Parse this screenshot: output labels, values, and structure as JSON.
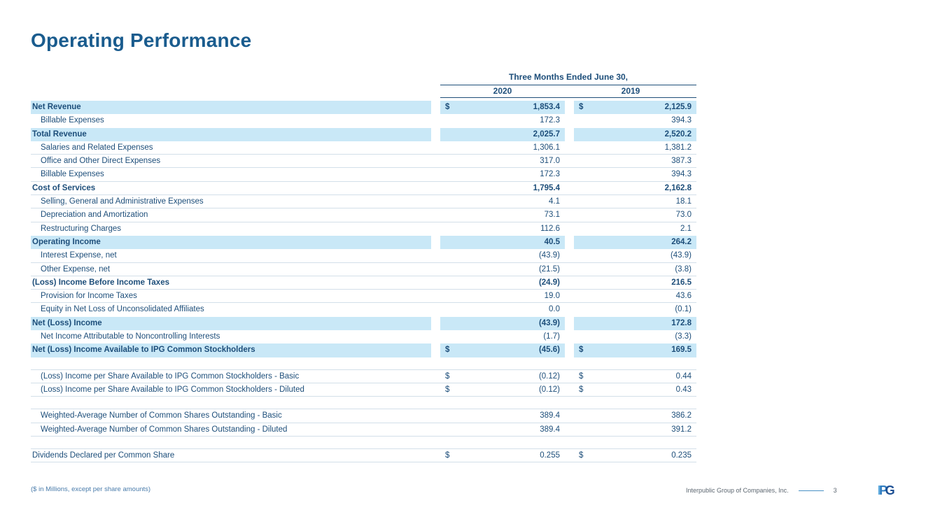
{
  "slide": {
    "title": "Operating Performance",
    "footnote": "($ in Millions, except per share amounts)",
    "footer": {
      "company": "Interpublic Group of Companies, Inc.",
      "page": "3",
      "logo_letters": [
        "I",
        "P",
        "G"
      ]
    },
    "colors": {
      "title_blue": "#1a5c8e",
      "table_text": "#1d4e7a",
      "row_highlight": "#c9e8f7",
      "header_rule": "#1f4e79",
      "row_rule": "#d3dfe9",
      "footer_accent": "#4a90c4"
    }
  },
  "table": {
    "period_header": "Three Months Ended June 30,",
    "year_columns": [
      "2020",
      "2019"
    ],
    "sections": [
      {
        "name": "income-statement",
        "rows": [
          {
            "label": "Net Revenue",
            "dollar": true,
            "v2020": "1,853.4",
            "v2019": "2,125.9",
            "highlight": true,
            "bold": true
          },
          {
            "label": "Billable Expenses",
            "indent": true,
            "v2020": "172.3",
            "v2019": "394.3"
          },
          {
            "label": "Total Revenue",
            "bold": true,
            "highlight": true,
            "v2020": "2,025.7",
            "v2019": "2,520.2"
          },
          {
            "label": "Salaries and Related Expenses",
            "indent": true,
            "v2020": "1,306.1",
            "v2019": "1,381.2",
            "line": true
          },
          {
            "label": "Office and Other Direct Expenses",
            "indent": true,
            "v2020": "317.0",
            "v2019": "387.3",
            "line": true
          },
          {
            "label": "Billable Expenses",
            "indent": true,
            "v2020": "172.3",
            "v2019": "394.3",
            "line": true
          },
          {
            "label": "Cost of Services",
            "bold": true,
            "v2020": "1,795.4",
            "v2019": "2,162.8",
            "line": true
          },
          {
            "label": "Selling, General and Administrative Expenses",
            "indent": true,
            "v2020": "4.1",
            "v2019": "18.1",
            "line": true
          },
          {
            "label": "Depreciation and Amortization",
            "indent": true,
            "v2020": "73.1",
            "v2019": "73.0",
            "line": true
          },
          {
            "label": "Restructuring Charges",
            "indent": true,
            "v2020": "112.6",
            "v2019": "2.1"
          },
          {
            "label": "Operating Income",
            "bold": true,
            "highlight": true,
            "v2020": "40.5",
            "v2019": "264.2"
          },
          {
            "label": "Interest Expense, net",
            "indent": true,
            "v2020": "(43.9)",
            "v2019": "(43.9)",
            "line": true
          },
          {
            "label": "Other Expense, net",
            "indent": true,
            "v2020": "(21.5)",
            "v2019": "(3.8)",
            "line": true
          },
          {
            "label": "(Loss) Income Before Income Taxes",
            "bold": true,
            "v2020": "(24.9)",
            "v2019": "216.5",
            "line": true
          },
          {
            "label": "Provision for Income Taxes",
            "indent": true,
            "v2020": "19.0",
            "v2019": "43.6",
            "line": true
          },
          {
            "label": "Equity in Net Loss of Unconsolidated Affiliates",
            "indent": true,
            "v2020": "0.0",
            "v2019": "(0.1)"
          },
          {
            "label": "Net (Loss) Income",
            "bold": true,
            "highlight": true,
            "v2020": "(43.9)",
            "v2019": "172.8"
          },
          {
            "label": "Net Income Attributable to Noncontrolling Interests",
            "indent": true,
            "v2020": "(1.7)",
            "v2019": "(3.3)"
          },
          {
            "label": "Net (Loss) Income Available to IPG Common Stockholders",
            "bold": true,
            "highlight": true,
            "dollar": true,
            "v2020": "(45.6)",
            "v2019": "169.5"
          }
        ]
      },
      {
        "name": "per-share",
        "rows": [
          {
            "label": "(Loss) Income per Share Available to IPG Common Stockholders - Basic",
            "indent": true,
            "dollar": true,
            "v2020": "(0.12)",
            "v2019": "0.44",
            "line": true
          },
          {
            "label": "(Loss) Income per Share Available to IPG Common Stockholders - Diluted",
            "indent": true,
            "dollar": true,
            "v2020": "(0.12)",
            "v2019": "0.43",
            "line": true
          }
        ]
      },
      {
        "name": "share-counts",
        "rows": [
          {
            "label": "Weighted-Average Number of Common Shares Outstanding - Basic",
            "indent": true,
            "v2020": "389.4",
            "v2019": "386.2",
            "line": true
          },
          {
            "label": "Weighted-Average Number of Common Shares Outstanding - Diluted",
            "indent": true,
            "v2020": "389.4",
            "v2019": "391.2",
            "line": true
          }
        ]
      },
      {
        "name": "dividends",
        "rows": [
          {
            "label": "Dividends Declared per Common Share",
            "dollar": true,
            "v2020": "0.255",
            "v2019": "0.235",
            "line": true
          }
        ]
      }
    ]
  }
}
